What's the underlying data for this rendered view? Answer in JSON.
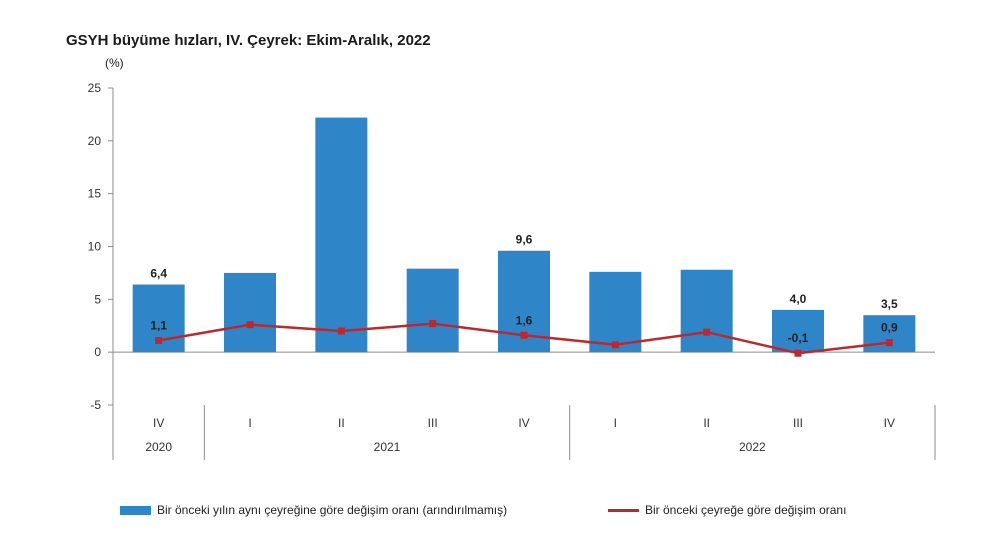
{
  "chart_data": {
    "type": "bar",
    "title": "GSYH büyüme hızları, IV. Çeyrek: Ekim-Aralık, 2022",
    "unit_label": "(%)",
    "ylim": [
      -5,
      25
    ],
    "y_ticks": [
      "-5",
      "0",
      "5",
      "10",
      "15",
      "20",
      "25"
    ],
    "grid": false,
    "categories": [
      "IV",
      "I",
      "II",
      "III",
      "IV",
      "I",
      "II",
      "III",
      "IV"
    ],
    "year_groups": [
      {
        "label": "2020",
        "count": 1
      },
      {
        "label": "2021",
        "count": 4
      },
      {
        "label": "2022",
        "count": 4
      }
    ],
    "series": [
      {
        "name": "Bir önceki yılın aynı çeyreğine göre değişim oranı (arındırılmamış)",
        "type": "bar",
        "color": "#2e86c8",
        "values": [
          6.4,
          7.5,
          22.2,
          7.9,
          9.6,
          7.6,
          7.8,
          4.0,
          3.5
        ],
        "labels": [
          "6,4",
          "",
          "",
          "",
          "9,6",
          "",
          "",
          "4,0",
          "3,5"
        ]
      },
      {
        "name": "Bir önceki çeyreğe göre değişim oranı",
        "type": "line",
        "color": "#c0272d",
        "values": [
          1.1,
          2.6,
          2.0,
          2.7,
          1.6,
          0.7,
          1.9,
          -0.1,
          0.9
        ],
        "labels": [
          "1,1",
          "",
          "",
          "",
          "1,6",
          "",
          "",
          "-0,1",
          "0,9"
        ]
      }
    ],
    "legend_position": "bottom"
  }
}
